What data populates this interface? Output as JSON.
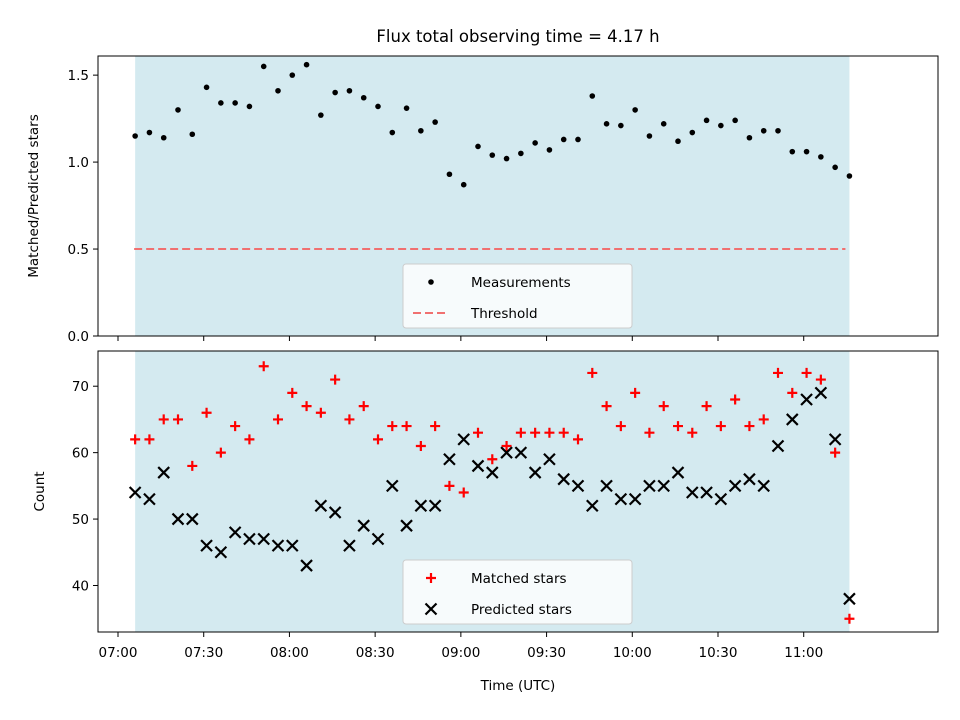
{
  "chart_data": {
    "title": "Flux total observing time = 4.17 h",
    "xlabel": "Time (UTC)",
    "x_ticks": [
      "07:00",
      "07:30",
      "08:00",
      "08:30",
      "09:00",
      "09:30",
      "10:00",
      "10:30",
      "11:00"
    ],
    "x_range": [
      "06:53",
      "11:47"
    ],
    "shaded_interval": [
      "07:06",
      "11:16"
    ],
    "shade_color": "#d4eaf0",
    "times": [
      "07:06",
      "07:11",
      "07:16",
      "07:21",
      "07:26",
      "07:31",
      "07:36",
      "07:41",
      "07:46",
      "07:51",
      "07:56",
      "08:01",
      "08:06",
      "08:11",
      "08:16",
      "08:21",
      "08:26",
      "08:31",
      "08:36",
      "08:41",
      "08:46",
      "08:51",
      "08:56",
      "09:01",
      "09:06",
      "09:11",
      "09:16",
      "09:21",
      "09:26",
      "09:31",
      "09:36",
      "09:41",
      "09:46",
      "09:51",
      "09:56",
      "10:01",
      "10:06",
      "10:11",
      "10:16",
      "10:21",
      "10:26",
      "10:31",
      "10:36",
      "10:41",
      "10:46",
      "10:51",
      "10:56",
      "11:01",
      "11:06",
      "11:11",
      "11:16"
    ],
    "panels": [
      {
        "type": "scatter",
        "ylabel": "Matched/Predicted stars",
        "ylim": [
          0,
          1.61
        ],
        "y_ticks": [
          0.0,
          0.5,
          1.0,
          1.5
        ],
        "y_tick_labels": [
          "0.0",
          "0.5",
          "1.0",
          "1.5"
        ],
        "legend_position": "lower center",
        "series": [
          {
            "name": "Measurements",
            "marker": "dot",
            "color": "#000000",
            "values": [
              1.15,
              1.17,
              1.14,
              1.3,
              1.16,
              1.43,
              1.34,
              1.34,
              1.32,
              1.55,
              1.41,
              1.5,
              1.56,
              1.27,
              1.4,
              1.41,
              1.37,
              1.32,
              1.17,
              1.31,
              1.18,
              1.23,
              0.93,
              0.87,
              1.09,
              1.04,
              1.02,
              1.05,
              1.11,
              1.07,
              1.13,
              1.13,
              1.38,
              1.22,
              1.21,
              1.3,
              1.15,
              1.22,
              1.12,
              1.17,
              1.24,
              1.21,
              1.24,
              1.14,
              1.18,
              1.18,
              1.06,
              1.06,
              1.03,
              0.97,
              0.92
            ]
          }
        ],
        "reference_line": {
          "name": "Threshold",
          "value": 0.5,
          "color": "#f07070",
          "style": "dashed"
        }
      },
      {
        "type": "scatter",
        "ylabel": "Count",
        "ylim": [
          33,
          75.3
        ],
        "y_ticks": [
          40,
          50,
          60,
          70
        ],
        "y_tick_labels": [
          "40",
          "50",
          "60",
          "70"
        ],
        "legend_position": "lower center",
        "series": [
          {
            "name": "Matched stars",
            "marker": "plus",
            "color": "#ff0000",
            "values": [
              62,
              62,
              65,
              65,
              58,
              66,
              60,
              64,
              62,
              73,
              65,
              69,
              67,
              66,
              71,
              65,
              67,
              62,
              64,
              64,
              61,
              64,
              55,
              54,
              63,
              59,
              61,
              63,
              63,
              63,
              63,
              62,
              72,
              67,
              64,
              69,
              63,
              67,
              64,
              63,
              67,
              64,
              68,
              64,
              65,
              72,
              69,
              72,
              71,
              60,
              35
            ]
          },
          {
            "name": "Predicted stars",
            "marker": "x",
            "color": "#000000",
            "values": [
              54,
              53,
              57,
              50,
              50,
              46,
              45,
              48,
              47,
              47,
              46,
              46,
              43,
              52,
              51,
              46,
              49,
              47,
              55,
              49,
              52,
              52,
              59,
              62,
              58,
              57,
              60,
              60,
              57,
              59,
              56,
              55,
              52,
              55,
              53,
              53,
              55,
              55,
              57,
              54,
              54,
              53,
              55,
              56,
              55,
              61,
              65,
              68,
              69,
              62,
              38
            ]
          }
        ]
      }
    ]
  }
}
